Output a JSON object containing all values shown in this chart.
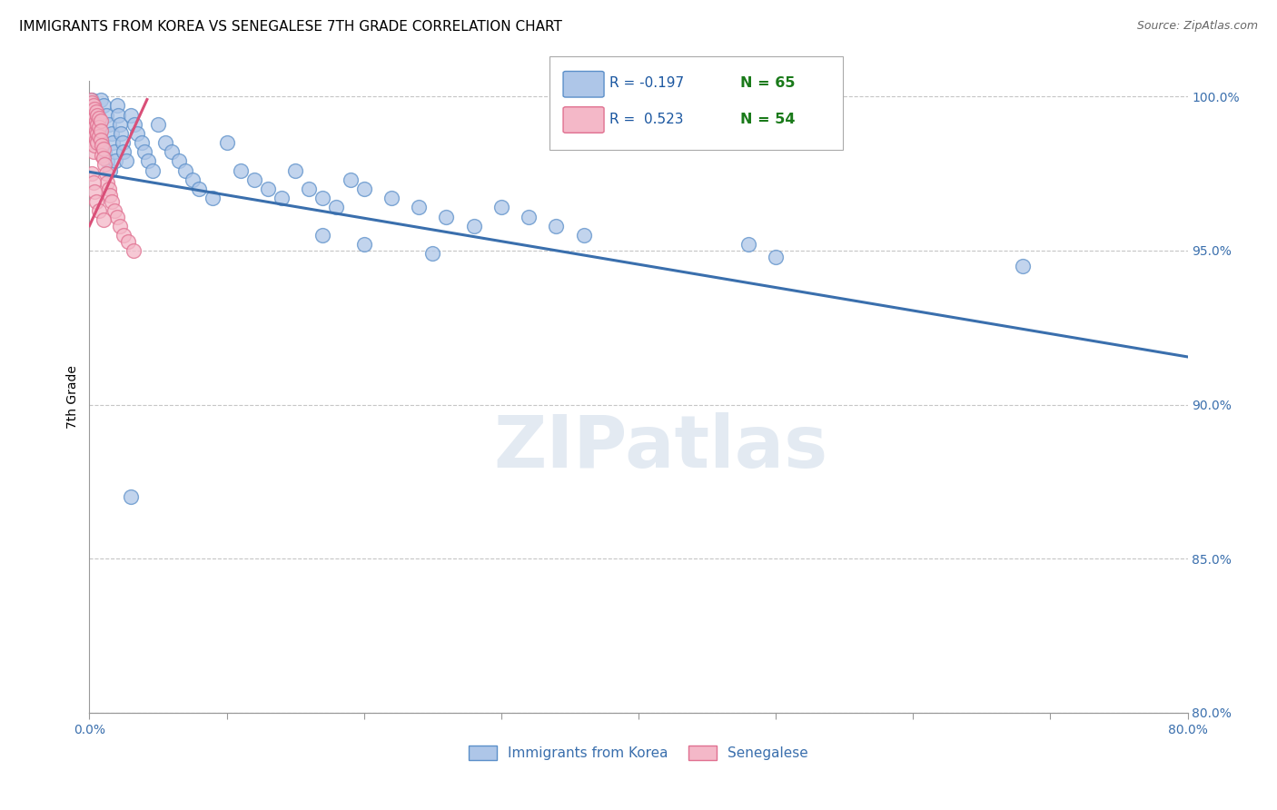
{
  "title": "IMMIGRANTS FROM KOREA VS SENEGALESE 7TH GRADE CORRELATION CHART",
  "source": "Source: ZipAtlas.com",
  "ylabel": "7th Grade",
  "xlim": [
    0.0,
    0.8
  ],
  "ylim": [
    0.8,
    1.005
  ],
  "blue_R": -0.197,
  "blue_N": 65,
  "pink_R": 0.523,
  "pink_N": 54,
  "blue_color": "#aec6e8",
  "blue_edge_color": "#5b8fc9",
  "blue_line_color": "#3a6fad",
  "pink_color": "#f4b8c8",
  "pink_edge_color": "#e07090",
  "pink_line_color": "#d94f78",
  "legend_R_color": "#1a56a0",
  "legend_N_color": "#1a7a1a",
  "title_fontsize": 11,
  "source_fontsize": 9,
  "tick_fontsize": 10,
  "ylabel_fontsize": 10,
  "blue_line_x0": 0.0,
  "blue_line_x1": 0.8,
  "blue_line_y0": 0.9755,
  "blue_line_y1": 0.9155,
  "pink_line_x0": 0.0,
  "pink_line_x1": 0.042,
  "pink_line_y0": 0.958,
  "pink_line_y1": 0.999,
  "blue_scatter_x": [
    0.002,
    0.004,
    0.005,
    0.006,
    0.007,
    0.008,
    0.009,
    0.01,
    0.011,
    0.012,
    0.013,
    0.014,
    0.015,
    0.016,
    0.017,
    0.018,
    0.019,
    0.02,
    0.021,
    0.022,
    0.023,
    0.024,
    0.025,
    0.027,
    0.03,
    0.033,
    0.035,
    0.038,
    0.04,
    0.043,
    0.046,
    0.05,
    0.055,
    0.06,
    0.065,
    0.07,
    0.075,
    0.08,
    0.09,
    0.1,
    0.11,
    0.12,
    0.13,
    0.14,
    0.15,
    0.16,
    0.17,
    0.18,
    0.19,
    0.2,
    0.22,
    0.24,
    0.26,
    0.28,
    0.3,
    0.32,
    0.34,
    0.36,
    0.48,
    0.5,
    0.17,
    0.2,
    0.25,
    0.68,
    0.03
  ],
  "blue_scatter_y": [
    0.999,
    0.997,
    0.994,
    0.991,
    0.988,
    0.999,
    0.985,
    0.997,
    0.982,
    0.994,
    0.979,
    0.991,
    0.976,
    0.988,
    0.985,
    0.982,
    0.979,
    0.997,
    0.994,
    0.991,
    0.988,
    0.985,
    0.982,
    0.979,
    0.994,
    0.991,
    0.988,
    0.985,
    0.982,
    0.979,
    0.976,
    0.991,
    0.985,
    0.982,
    0.979,
    0.976,
    0.973,
    0.97,
    0.967,
    0.985,
    0.976,
    0.973,
    0.97,
    0.967,
    0.976,
    0.97,
    0.967,
    0.964,
    0.973,
    0.97,
    0.967,
    0.964,
    0.961,
    0.958,
    0.964,
    0.961,
    0.958,
    0.955,
    0.952,
    0.948,
    0.955,
    0.952,
    0.949,
    0.945,
    0.87
  ],
  "pink_scatter_x": [
    0.001,
    0.001,
    0.001,
    0.002,
    0.002,
    0.002,
    0.002,
    0.003,
    0.003,
    0.003,
    0.003,
    0.003,
    0.003,
    0.004,
    0.004,
    0.004,
    0.004,
    0.004,
    0.005,
    0.005,
    0.005,
    0.005,
    0.006,
    0.006,
    0.006,
    0.006,
    0.007,
    0.007,
    0.007,
    0.008,
    0.008,
    0.008,
    0.009,
    0.009,
    0.01,
    0.01,
    0.011,
    0.012,
    0.013,
    0.014,
    0.015,
    0.016,
    0.018,
    0.02,
    0.022,
    0.025,
    0.028,
    0.032,
    0.002,
    0.003,
    0.004,
    0.005,
    0.007,
    0.01
  ],
  "pink_scatter_y": [
    0.999,
    0.996,
    0.993,
    0.998,
    0.995,
    0.992,
    0.989,
    0.997,
    0.994,
    0.991,
    0.988,
    0.985,
    0.982,
    0.996,
    0.993,
    0.99,
    0.987,
    0.984,
    0.995,
    0.992,
    0.989,
    0.986,
    0.994,
    0.991,
    0.988,
    0.985,
    0.993,
    0.99,
    0.987,
    0.992,
    0.989,
    0.986,
    0.984,
    0.981,
    0.983,
    0.98,
    0.978,
    0.975,
    0.972,
    0.97,
    0.968,
    0.966,
    0.963,
    0.961,
    0.958,
    0.955,
    0.953,
    0.95,
    0.975,
    0.972,
    0.969,
    0.966,
    0.963,
    0.96
  ],
  "watermark_text": "ZIPatlas"
}
